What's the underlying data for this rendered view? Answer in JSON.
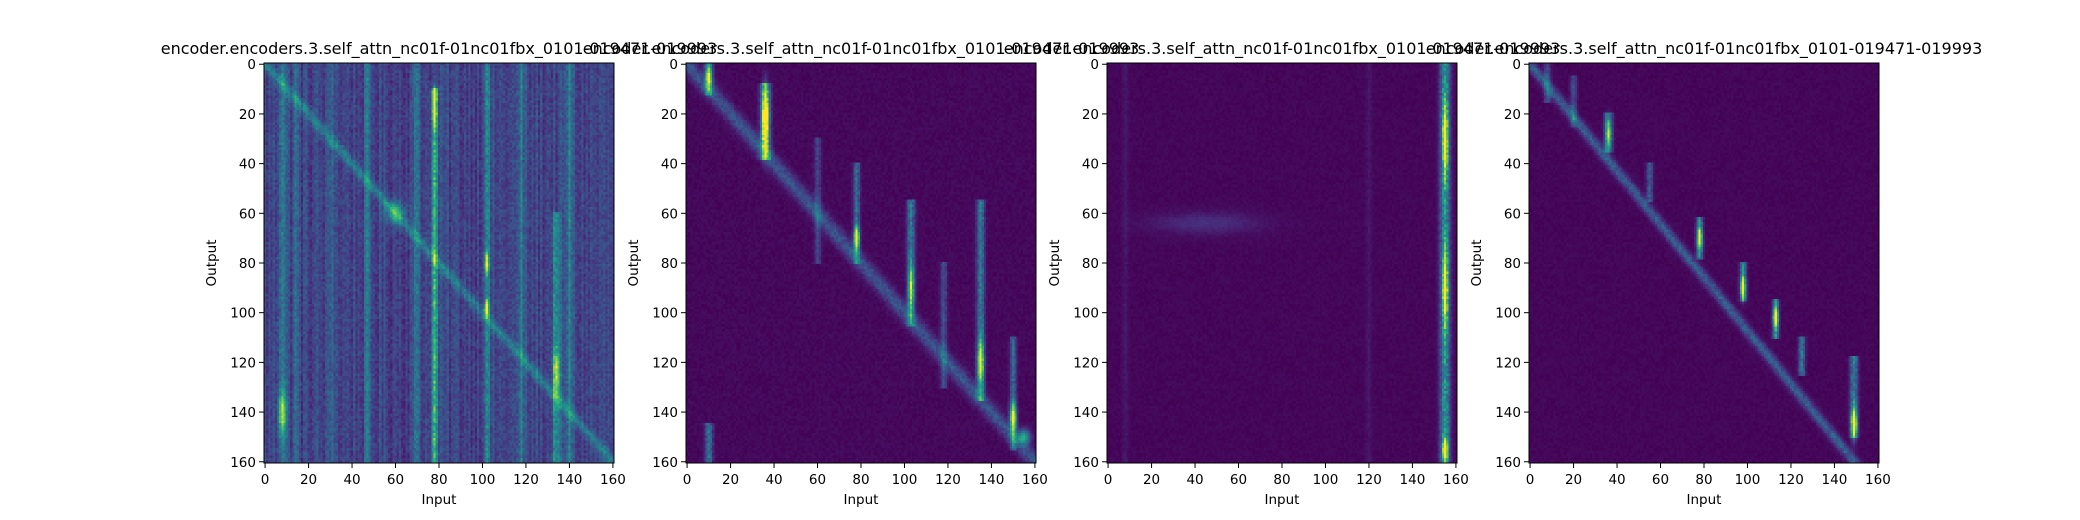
{
  "figure": {
    "background": "#ffffff"
  },
  "chart_data": [
    {
      "type": "heatmap",
      "title": "encoder.encoders.3.self_attn_nc01f-01nc01fbx_0101-019471-019993",
      "xlabel": "Input",
      "ylabel": "Output",
      "x_ticks": [
        0,
        20,
        40,
        60,
        80,
        100,
        120,
        140,
        160
      ],
      "y_ticks": [
        0,
        20,
        40,
        60,
        80,
        100,
        120,
        140,
        160
      ],
      "xlim": [
        0,
        161
      ],
      "ylim": [
        161,
        0
      ],
      "colormap": "viridis",
      "pattern": {
        "background": 0.14,
        "noise": 0.12,
        "diagonal": {
          "from": [
            0,
            0
          ],
          "to": [
            161,
            161
          ],
          "strength": 0.28,
          "width": 2.0
        },
        "column_stripes": [
          {
            "x": 8,
            "y0": 0,
            "y1": 161,
            "strength": 0.32,
            "width": 1.2
          },
          {
            "x": 14,
            "y0": 0,
            "y1": 161,
            "strength": 0.18,
            "width": 1.0
          },
          {
            "x": 31,
            "y0": 0,
            "y1": 161,
            "strength": 0.18,
            "width": 1.0
          },
          {
            "x": 47,
            "y0": 0,
            "y1": 161,
            "strength": 0.2,
            "width": 1.0
          },
          {
            "x": 70,
            "y0": 0,
            "y1": 161,
            "strength": 0.25,
            "width": 1.0
          },
          {
            "x": 78,
            "y0": 10,
            "y1": 161,
            "strength": 0.6,
            "width": 1.0
          },
          {
            "x": 102,
            "y0": 0,
            "y1": 161,
            "strength": 0.35,
            "width": 1.0
          },
          {
            "x": 118,
            "y0": 0,
            "y1": 161,
            "strength": 0.25,
            "width": 1.0
          },
          {
            "x": 134,
            "y0": 60,
            "y1": 161,
            "strength": 0.4,
            "width": 1.2
          },
          {
            "x": 140,
            "y0": 0,
            "y1": 161,
            "strength": 0.3,
            "width": 1.0
          }
        ],
        "spots": [
          {
            "x": 78,
            "y": 12,
            "strength": 0.9,
            "rx": 0.6,
            "ry": 2.0
          },
          {
            "x": 78,
            "y": 20,
            "strength": 0.7,
            "rx": 0.6,
            "ry": 3.0
          },
          {
            "x": 102,
            "y": 80,
            "strength": 0.6,
            "rx": 0.6,
            "ry": 3.0
          },
          {
            "x": 102,
            "y": 98,
            "strength": 0.8,
            "rx": 0.6,
            "ry": 2.0
          },
          {
            "x": 8,
            "y": 140,
            "strength": 0.55,
            "rx": 1.2,
            "ry": 6.0
          },
          {
            "x": 134,
            "y": 124,
            "strength": 0.5,
            "rx": 1.0,
            "ry": 6.0
          },
          {
            "x": 60,
            "y": 60,
            "strength": 0.4,
            "rx": 3.0,
            "ry": 3.0
          }
        ]
      }
    },
    {
      "type": "heatmap",
      "title": "encoder.encoders.3.self_attn_nc01f-01nc01fbx_0101-019471-019993",
      "xlabel": "Input",
      "ylabel": "Output",
      "x_ticks": [
        0,
        20,
        40,
        60,
        80,
        100,
        120,
        140,
        160
      ],
      "y_ticks": [
        0,
        20,
        40,
        60,
        80,
        100,
        120,
        140,
        160
      ],
      "xlim": [
        0,
        161
      ],
      "ylim": [
        161,
        0
      ],
      "colormap": "viridis",
      "pattern": {
        "background": 0.0,
        "noise": 0.04,
        "diagonal": {
          "from": [
            0,
            0
          ],
          "to": [
            161,
            161
          ],
          "strength": 0.3,
          "width": 3.0
        },
        "column_stripes": [
          {
            "x": 10,
            "y0": 0,
            "y1": 12,
            "strength": 0.55,
            "width": 1.2
          },
          {
            "x": 36,
            "y0": 8,
            "y1": 38,
            "strength": 0.7,
            "width": 1.5
          },
          {
            "x": 10,
            "y0": 145,
            "y1": 161,
            "strength": 0.45,
            "width": 1.2
          },
          {
            "x": 60,
            "y0": 30,
            "y1": 80,
            "strength": 0.25,
            "width": 1.0
          },
          {
            "x": 78,
            "y0": 40,
            "y1": 80,
            "strength": 0.45,
            "width": 1.0
          },
          {
            "x": 103,
            "y0": 55,
            "y1": 105,
            "strength": 0.5,
            "width": 1.2
          },
          {
            "x": 118,
            "y0": 80,
            "y1": 130,
            "strength": 0.3,
            "width": 1.0
          },
          {
            "x": 135,
            "y0": 55,
            "y1": 135,
            "strength": 0.5,
            "width": 1.2
          },
          {
            "x": 150,
            "y0": 110,
            "y1": 155,
            "strength": 0.4,
            "width": 1.0
          }
        ],
        "spots": [
          {
            "x": 36,
            "y": 22,
            "strength": 0.95,
            "rx": 1.0,
            "ry": 8.0
          },
          {
            "x": 78,
            "y": 70,
            "strength": 0.95,
            "rx": 0.8,
            "ry": 3.0
          },
          {
            "x": 103,
            "y": 90,
            "strength": 0.6,
            "rx": 0.8,
            "ry": 6.0
          },
          {
            "x": 135,
            "y": 120,
            "strength": 0.7,
            "rx": 1.0,
            "ry": 6.0
          },
          {
            "x": 150,
            "y": 142,
            "strength": 0.75,
            "rx": 1.0,
            "ry": 4.0
          },
          {
            "x": 155,
            "y": 150,
            "strength": 0.55,
            "rx": 2.0,
            "ry": 2.0
          },
          {
            "x": 10,
            "y": 5,
            "strength": 0.5,
            "rx": 1.0,
            "ry": 3.0
          }
        ]
      }
    },
    {
      "type": "heatmap",
      "title": "encoder.encoders.3.self_attn_nc01f-01nc01fbx_0101-019471-019993",
      "xlabel": "Input",
      "ylabel": "Output",
      "x_ticks": [
        0,
        20,
        40,
        60,
        80,
        100,
        120,
        140,
        160
      ],
      "y_ticks": [
        0,
        20,
        40,
        60,
        80,
        100,
        120,
        140,
        160
      ],
      "xlim": [
        0,
        161
      ],
      "ylim": [
        161,
        0
      ],
      "colormap": "viridis",
      "pattern": {
        "background": 0.0,
        "noise": 0.03,
        "diagonal": null,
        "column_stripes": [
          {
            "x": 155,
            "y0": 0,
            "y1": 161,
            "strength": 0.65,
            "width": 1.6
          },
          {
            "x": 120,
            "y0": 0,
            "y1": 161,
            "strength": 0.06,
            "width": 1.0
          },
          {
            "x": 8,
            "y0": 0,
            "y1": 161,
            "strength": 0.06,
            "width": 1.0
          }
        ],
        "spots": [
          {
            "x": 155,
            "y": 30,
            "strength": 0.8,
            "rx": 0.8,
            "ry": 10.0
          },
          {
            "x": 155,
            "y": 90,
            "strength": 0.8,
            "rx": 0.8,
            "ry": 10.0
          },
          {
            "x": 155,
            "y": 155,
            "strength": 0.95,
            "rx": 0.8,
            "ry": 3.0
          },
          {
            "x": 45,
            "y": 64,
            "strength": 0.12,
            "rx": 18.0,
            "ry": 3.0
          }
        ]
      }
    },
    {
      "type": "heatmap",
      "title": "encoder.encoders.3.self_attn_nc01f-01nc01fbx_0101-019471-019993",
      "xlabel": "Input",
      "ylabel": "Output",
      "x_ticks": [
        0,
        20,
        40,
        60,
        80,
        100,
        120,
        140,
        160
      ],
      "y_ticks": [
        0,
        20,
        40,
        60,
        80,
        100,
        120,
        140,
        160
      ],
      "xlim": [
        0,
        161
      ],
      "ylim": [
        161,
        0
      ],
      "colormap": "viridis",
      "pattern": {
        "background": 0.0,
        "noise": 0.03,
        "diagonal": {
          "from": [
            0,
            0
          ],
          "to": [
            150,
            161
          ],
          "strength": 0.35,
          "width": 2.0
        },
        "column_stripes": [
          {
            "x": 8,
            "y0": 0,
            "y1": 15,
            "strength": 0.3,
            "width": 1.0
          },
          {
            "x": 20,
            "y0": 5,
            "y1": 25,
            "strength": 0.3,
            "width": 1.0
          },
          {
            "x": 36,
            "y0": 20,
            "y1": 35,
            "strength": 0.45,
            "width": 1.2
          },
          {
            "x": 55,
            "y0": 40,
            "y1": 55,
            "strength": 0.35,
            "width": 1.0
          },
          {
            "x": 78,
            "y0": 62,
            "y1": 78,
            "strength": 0.55,
            "width": 1.0
          },
          {
            "x": 98,
            "y0": 80,
            "y1": 95,
            "strength": 0.55,
            "width": 1.0
          },
          {
            "x": 113,
            "y0": 95,
            "y1": 110,
            "strength": 0.55,
            "width": 1.0
          },
          {
            "x": 125,
            "y0": 110,
            "y1": 125,
            "strength": 0.5,
            "width": 1.0
          },
          {
            "x": 149,
            "y0": 118,
            "y1": 150,
            "strength": 0.55,
            "width": 1.2
          }
        ],
        "spots": [
          {
            "x": 149,
            "y": 145,
            "strength": 0.95,
            "rx": 0.8,
            "ry": 4.0
          },
          {
            "x": 78,
            "y": 70,
            "strength": 0.8,
            "rx": 0.8,
            "ry": 3.0
          },
          {
            "x": 98,
            "y": 90,
            "strength": 0.8,
            "rx": 0.8,
            "ry": 3.0
          },
          {
            "x": 113,
            "y": 102,
            "strength": 0.75,
            "rx": 0.8,
            "ry": 3.0
          },
          {
            "x": 36,
            "y": 28,
            "strength": 0.55,
            "rx": 1.0,
            "ry": 4.0
          }
        ]
      }
    }
  ]
}
